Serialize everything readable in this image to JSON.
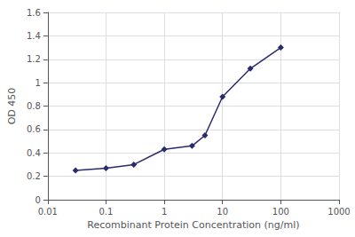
{
  "chart_data": {
    "type": "line",
    "xlabel": "Recombinant Protein Concentration (ng/ml)",
    "ylabel": "OD 450",
    "x": [
      0.03,
      0.1,
      0.3,
      1,
      3,
      5,
      10,
      30,
      100
    ],
    "values": [
      0.25,
      0.27,
      0.3,
      0.43,
      0.46,
      0.55,
      0.88,
      1.12,
      1.3
    ],
    "xlim": [
      0.01,
      1000
    ],
    "ylim": [
      0,
      1.6
    ],
    "xticks": [
      0.01,
      0.1,
      1,
      10,
      100,
      1000
    ],
    "yticks": [
      0,
      0.2,
      0.4,
      0.6,
      0.8,
      1,
      1.2,
      1.4,
      1.6
    ],
    "log": "x",
    "grid": true,
    "color": "#2a2a6e",
    "marker": "diamond"
  }
}
